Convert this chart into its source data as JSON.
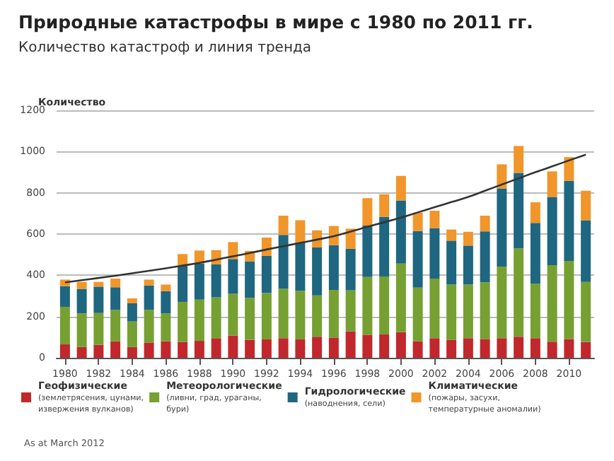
{
  "chart_data": {
    "type": "bar",
    "title": "Природные катастрофы в мире с 1980 по 2011 гг.",
    "subtitle": "Количество катастроф и линия тренда",
    "ylabel": "Количество",
    "stacked": true,
    "categories": [
      "1980",
      null,
      "1982",
      null,
      "1984",
      null,
      "1986",
      null,
      "1988",
      null,
      "1990",
      null,
      "1992",
      null,
      "1994",
      null,
      "1996",
      null,
      "1998",
      null,
      "2000",
      null,
      "2002",
      null,
      "2004",
      null,
      "2006",
      null,
      "2008",
      null,
      "2010",
      null
    ],
    "ylim": [
      0,
      1200
    ],
    "yticks": [
      0,
      200,
      400,
      600,
      800,
      1000,
      1200
    ],
    "grid": "y",
    "legend": "bottom",
    "series": [
      {
        "name": "Геофизические (землетрясения, цунами, извержения вулканов)",
        "color": "#c0282d",
        "values": [
          65,
          52,
          63,
          80,
          52,
          74,
          80,
          76,
          82,
          95,
          108,
          87,
          89,
          95,
          89,
          102,
          98,
          128,
          111,
          113,
          124,
          80,
          95,
          87,
          95,
          91,
          95,
          102,
          95,
          78,
          91,
          76
        ]
      },
      {
        "name": "Метеорологические (ливни, град, ураганы, бури)",
        "color": "#76a032",
        "values": [
          182,
          163,
          154,
          152,
          124,
          158,
          135,
          195,
          200,
          198,
          202,
          203,
          225,
          239,
          236,
          201,
          231,
          199,
          281,
          281,
          333,
          260,
          289,
          268,
          260,
          275,
          347,
          429,
          265,
          371,
          379,
          292
        ]
      },
      {
        "name": "Гидрологические (наводнения, сели)",
        "color": "#1f6680",
        "values": [
          100,
          119,
          128,
          110,
          88,
          119,
          108,
          175,
          175,
          160,
          169,
          178,
          180,
          262,
          234,
          232,
          217,
          202,
          249,
          289,
          306,
          275,
          244,
          213,
          189,
          247,
          379,
          366,
          294,
          331,
          388,
          299
        ]
      },
      {
        "name": "Климатические (пожары, засухи, температурные аномалии)",
        "color": "#f0962a",
        "values": [
          32,
          34,
          23,
          42,
          24,
          28,
          32,
          57,
          63,
          69,
          82,
          50,
          89,
          93,
          108,
          83,
          93,
          97,
          133,
          110,
          119,
          89,
          85,
          54,
          67,
          76,
          117,
          130,
          100,
          124,
          115,
          143
        ]
      },
      {
        "type": "line",
        "color": "#333333",
        "values": [
          365,
          376,
          387,
          398,
          410,
          422,
          434,
          447,
          460,
          476,
          492,
          508,
          525,
          541,
          557,
          573,
          590,
          612,
          635,
          657,
          680,
          705,
          730,
          755,
          780,
          810,
          840,
          870,
          900,
          928,
          957,
          985
        ]
      }
    ],
    "annotations": [
      "As at March 2012"
    ]
  }
}
